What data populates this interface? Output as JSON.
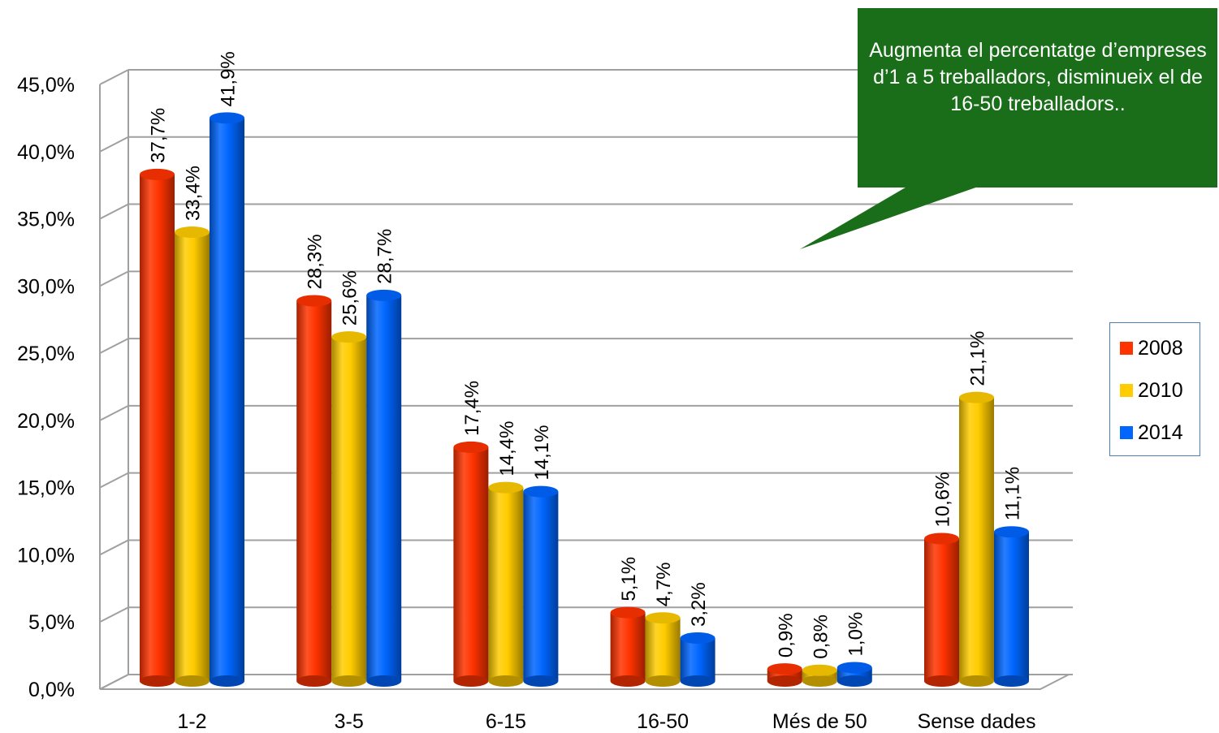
{
  "chart_data": {
    "type": "bar",
    "categories": [
      "1-2",
      "3-5",
      "6-15",
      "16-50",
      "Més de 50",
      "Sense dades"
    ],
    "series": [
      {
        "name": "2008",
        "color": "#ff3300",
        "values": [
          37.7,
          28.3,
          17.4,
          5.1,
          0.9,
          10.6
        ],
        "labels": [
          "37,7%",
          "28,3%",
          "17,4%",
          "5,1%",
          "0,9%",
          "10,6%"
        ]
      },
      {
        "name": "2010",
        "color": "#ffcc00",
        "values": [
          33.4,
          25.6,
          14.4,
          4.7,
          0.8,
          21.1
        ],
        "labels": [
          "33,4%",
          "25,6%",
          "14,4%",
          "4,7%",
          "0,8%",
          "21,1%"
        ]
      },
      {
        "name": "2014",
        "color": "#0066ff",
        "values": [
          41.9,
          28.7,
          14.1,
          3.2,
          1.0,
          11.1
        ],
        "labels": [
          "41,9%",
          "28,7%",
          "14,1%",
          "3,2%",
          "1,0%",
          "11,1%"
        ]
      }
    ],
    "ylim": [
      0,
      45
    ],
    "yticks": [
      0,
      5,
      10,
      15,
      20,
      25,
      30,
      35,
      40,
      45
    ],
    "ytick_labels": [
      "0,0%",
      "5,0%",
      "10,0%",
      "15,0%",
      "20,0%",
      "25,0%",
      "30,0%",
      "35,0%",
      "40,0%",
      "45,0%"
    ],
    "grid": true,
    "legend_position": "right",
    "title": "",
    "xlabel": "",
    "ylabel": ""
  },
  "callout": {
    "text": "Augmenta el percentatge d’empreses d’1 a 5 treballadors, disminueix el de 16-50 treballadors..",
    "background": "#1a6e1a"
  },
  "legend": {
    "items": [
      {
        "label": "2008",
        "color": "#ff3300"
      },
      {
        "label": "2010",
        "color": "#ffcc00"
      },
      {
        "label": "2014",
        "color": "#0066ff"
      }
    ]
  }
}
